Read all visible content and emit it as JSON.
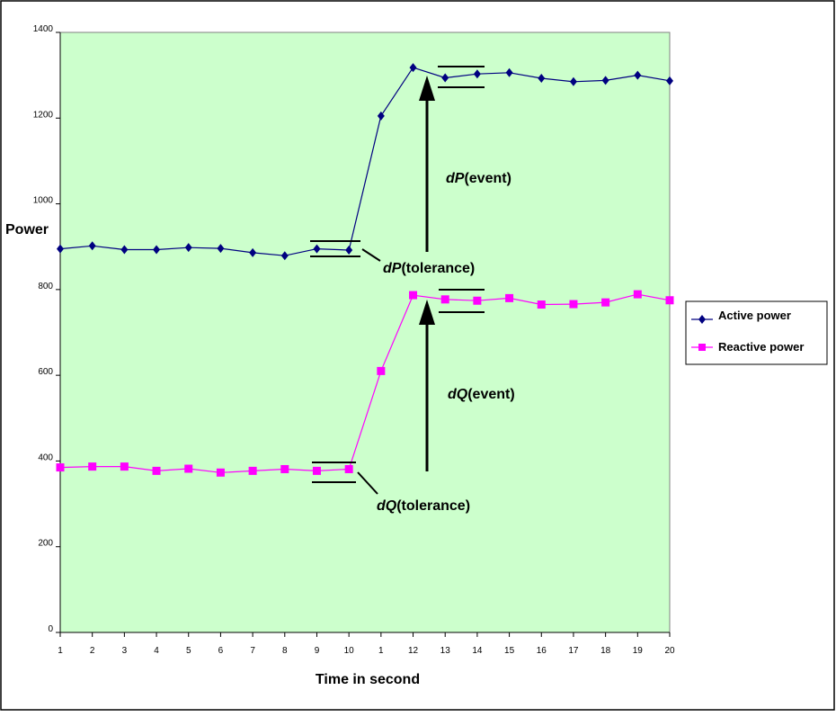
{
  "chart_data": {
    "type": "line",
    "title": "",
    "xlabel": "Time in second",
    "ylabel": "Power",
    "categories": [
      "1",
      "2",
      "3",
      "4",
      "5",
      "6",
      "7",
      "8",
      "9",
      "10",
      "1",
      "12",
      "13",
      "14",
      "15",
      "16",
      "17",
      "18",
      "19",
      "20"
    ],
    "ylim": [
      0,
      1400
    ],
    "yticks": [
      0,
      200,
      400,
      600,
      800,
      1000,
      1200,
      1400
    ],
    "grid": false,
    "legend_position": "right",
    "series": [
      {
        "name": "Active power",
        "color": "#000080",
        "marker": "diamond",
        "values": [
          895,
          902,
          893,
          893,
          898,
          896,
          886,
          879,
          895,
          892,
          1205,
          1318,
          1294,
          1303,
          1306,
          1293,
          1285,
          1288,
          1300,
          1287
        ]
      },
      {
        "name": "Reactive power",
        "color": "#FF00FF",
        "marker": "square",
        "values": [
          385,
          387,
          387,
          377,
          382,
          373,
          377,
          381,
          377,
          381,
          610,
          787,
          777,
          774,
          780,
          765,
          766,
          770,
          789,
          775
        ]
      }
    ],
    "annotations": [
      {
        "var": "dP",
        "rest": "(event)"
      },
      {
        "var": "dP",
        "rest": "(tolerance)"
      },
      {
        "var": "dQ",
        "rest": "(event)"
      },
      {
        "var": "dQ",
        "rest": "(tolerance)"
      }
    ],
    "colors": {
      "plot_background": "#CCFFCC",
      "frame": "#000000",
      "arrow": "#000000"
    }
  }
}
